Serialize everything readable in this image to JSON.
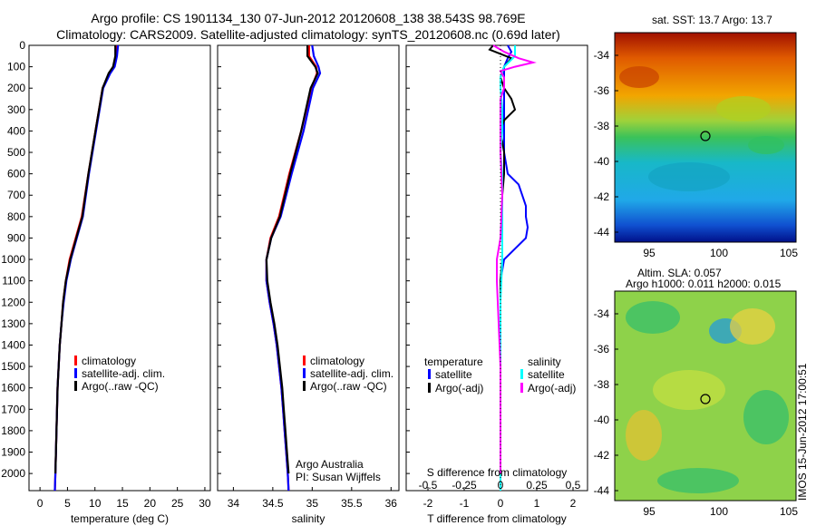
{
  "header": {
    "title_line1": "Argo profile: CS 1901134_130 07-Jun-2012 20120608_138 38.543S 98.769E",
    "title_line2": "Climatology: CARS2009. Satellite-adjusted climatology: synTS_20120608.nc (0.69d later)"
  },
  "colors": {
    "climatology": "#ff0000",
    "satellite": "#0000ff",
    "argo": "#000000",
    "sat_salinity": "#00ffff",
    "argo_salinity": "#ff00ff"
  },
  "chart_data": [
    {
      "type": "line",
      "name": "temperature",
      "xlabel": "temperature (deg C)",
      "xlim": [
        -2,
        31
      ],
      "ylim": [
        2080,
        0
      ],
      "x_ticks": [
        0,
        5,
        10,
        15,
        20,
        25,
        30
      ],
      "y_ticks": [
        0,
        100,
        200,
        300,
        400,
        500,
        600,
        700,
        800,
        900,
        1000,
        1100,
        1200,
        1300,
        1400,
        1500,
        1600,
        1700,
        1800,
        1900,
        2000
      ],
      "legend": [
        "climatology",
        "satellite-adj. clim.",
        "Argo(..raw -QC)"
      ],
      "series": [
        {
          "name": "climatology",
          "depth": [
            0,
            50,
            100,
            130,
            200,
            400,
            600,
            800,
            900,
            1000,
            1100,
            1200,
            1300,
            1400,
            1500,
            1600,
            1700,
            1800,
            1900,
            2000,
            2080
          ],
          "values": [
            13.9,
            13.8,
            13.4,
            12.6,
            11.4,
            10.1,
            8.8,
            7.6,
            6.5,
            5.4,
            4.7,
            4.2,
            3.9,
            3.6,
            3.4,
            3.2,
            3.1,
            3.0,
            2.9,
            2.8,
            2.7
          ]
        },
        {
          "name": "satellite-adj. clim.",
          "depth": [
            0,
            50,
            100,
            130,
            200,
            400,
            600,
            800,
            900,
            1000,
            1100,
            1200,
            1300,
            1400,
            1500,
            1600,
            1700,
            1800,
            1900,
            2000,
            2080
          ],
          "values": [
            14.2,
            14.0,
            13.6,
            12.8,
            11.5,
            10.2,
            8.9,
            7.8,
            6.7,
            5.6,
            4.8,
            4.3,
            3.9,
            3.6,
            3.4,
            3.2,
            3.1,
            3.0,
            2.9,
            2.8,
            2.7
          ]
        },
        {
          "name": "Argo(..raw -QC)",
          "depth": [
            0,
            50,
            100,
            130,
            200,
            400,
            600,
            800,
            900,
            1000,
            1100,
            1200,
            1300,
            1400,
            1500,
            1600,
            1700,
            1800,
            1900,
            2000
          ],
          "values": [
            13.7,
            13.7,
            13.3,
            12.5,
            11.4,
            10.1,
            8.8,
            7.7,
            6.6,
            5.5,
            4.7,
            4.2,
            3.9,
            3.6,
            3.4,
            3.2,
            3.1,
            3.0,
            2.9,
            2.8
          ]
        }
      ]
    },
    {
      "type": "line",
      "name": "salinity",
      "xlabel": "salinity",
      "xlim": [
        33.8,
        36.1
      ],
      "ylim": [
        2080,
        0
      ],
      "x_ticks": [
        34,
        34.5,
        35,
        35.5,
        36
      ],
      "legend": [
        "climatology",
        "satellite-adj. clim.",
        "Argo(..raw -QC)"
      ],
      "annotation": [
        "Argo Australia",
        "PI: Susan Wijffels"
      ],
      "series": [
        {
          "name": "climatology",
          "depth": [
            0,
            50,
            100,
            130,
            200,
            400,
            600,
            800,
            900,
            1000,
            1100,
            1200,
            1300,
            1400,
            1500,
            1600,
            1700,
            1800,
            1900,
            2000,
            2080
          ],
          "values": [
            34.96,
            34.96,
            35.05,
            35.06,
            34.99,
            34.86,
            34.71,
            34.58,
            34.47,
            34.42,
            34.42,
            34.46,
            34.51,
            34.55,
            34.58,
            34.61,
            34.63,
            34.65,
            34.67,
            34.69,
            34.7
          ]
        },
        {
          "name": "satellite-adj. clim.",
          "depth": [
            0,
            50,
            100,
            130,
            200,
            400,
            600,
            800,
            900,
            1000,
            1100,
            1200,
            1300,
            1400,
            1500,
            1600,
            1700,
            1800,
            1900,
            2000,
            2080
          ],
          "values": [
            35.0,
            35.02,
            35.08,
            35.1,
            35.01,
            34.89,
            34.74,
            34.6,
            34.48,
            34.42,
            34.42,
            34.46,
            34.51,
            34.55,
            34.58,
            34.61,
            34.63,
            34.65,
            34.67,
            34.69,
            34.7
          ]
        },
        {
          "name": "Argo(..raw -QC)",
          "depth": [
            0,
            50,
            100,
            130,
            200,
            400,
            600,
            800,
            900,
            1000,
            1100,
            1200,
            1300,
            1400,
            1500,
            1600,
            1700,
            1800,
            1900,
            2000
          ],
          "values": [
            34.94,
            34.94,
            35.04,
            35.07,
            34.98,
            34.86,
            34.72,
            34.59,
            34.48,
            34.42,
            34.43,
            34.47,
            34.52,
            34.56,
            34.59,
            34.62,
            34.64,
            34.66,
            34.68,
            34.7
          ]
        }
      ]
    },
    {
      "type": "line",
      "name": "differences",
      "xlabel": "T difference from climatology",
      "xlabel2": "S difference from climatology",
      "xlim": [
        -2.6,
        2.4
      ],
      "ylim": [
        2080,
        0
      ],
      "x_ticks": [
        -2,
        -1,
        0,
        1,
        2
      ],
      "x_ticks_top": [
        "-0.5",
        "-0.25",
        "0",
        "0.25",
        "0.5"
      ],
      "legend_temperature_title": "temperature",
      "legend_salinity_title": "salinity",
      "legend": [
        "satellite",
        "Argo(-adj)",
        "satellite",
        "Argo(-adj)"
      ],
      "series": [
        {
          "name": "satellite",
          "group": "temperature",
          "depth": [
            0,
            30,
            60,
            100,
            150,
            200,
            300,
            400,
            500,
            600,
            650,
            700,
            750,
            800,
            850,
            900,
            950,
            1000,
            1100,
            1200,
            1400,
            1600,
            1800,
            2000,
            2080
          ],
          "values": [
            0.2,
            0.3,
            0.2,
            0.1,
            0.1,
            0.1,
            0.1,
            0.1,
            0.1,
            0.2,
            0.5,
            0.6,
            0.7,
            0.7,
            0.75,
            0.7,
            0.4,
            0.1,
            0.0,
            0.0,
            0.0,
            0.0,
            0.0,
            0.0,
            0.0
          ]
        },
        {
          "name": "Argo(-adj)",
          "group": "temperature",
          "depth": [
            0,
            20,
            40,
            60,
            80,
            100,
            150,
            200,
            250,
            300,
            350,
            400,
            500,
            600,
            700,
            800,
            900,
            1000,
            1100,
            1200,
            1400,
            1600,
            1800,
            2000
          ],
          "values": [
            -0.2,
            -0.3,
            0.0,
            0.3,
            0.2,
            0.1,
            0.0,
            0.1,
            0.3,
            0.4,
            0.1,
            0.0,
            0.1,
            0.1,
            0.05,
            0.05,
            0.05,
            0.05,
            0.0,
            0.0,
            0.0,
            0.0,
            0.0,
            0.0
          ]
        },
        {
          "name": "satellite",
          "group": "salinity",
          "depth": [
            0,
            50,
            100,
            150,
            200,
            300,
            400,
            500,
            600,
            800,
            1000,
            1200,
            1400,
            1600,
            1800,
            2000,
            2080
          ],
          "values": [
            0.4,
            0.4,
            0.1,
            0.0,
            0.0,
            0.05,
            0.05,
            0.0,
            0.05,
            0.05,
            0.05,
            0.0,
            0.0,
            0.0,
            0.0,
            0.0,
            0.0
          ]
        },
        {
          "name": "Argo(-adj)",
          "group": "salinity",
          "depth": [
            0,
            30,
            60,
            80,
            100,
            120,
            150,
            200,
            250,
            300,
            400,
            500,
            700,
            900,
            1000,
            1100,
            1300,
            1500,
            1700,
            1900,
            2000
          ],
          "values": [
            -0.2,
            0.1,
            0.5,
            0.9,
            0.4,
            0.0,
            0.1,
            0.1,
            0.0,
            0.0,
            0.0,
            0.0,
            0.05,
            0.0,
            -0.1,
            -0.1,
            -0.05,
            0.0,
            0.0,
            0.0,
            0.0
          ]
        }
      ]
    }
  ],
  "maps": [
    {
      "title": "sat. SST: 13.7 Argo: 13.7",
      "y_ticks": [
        "-34",
        "-36",
        "-38",
        "-40",
        "-42",
        "-44"
      ],
      "x_ticks": [
        "95",
        "100",
        "105"
      ]
    },
    {
      "title_line1": "Altim. SLA: 0.057",
      "title_line2": "Argo h1000: 0.011 h2000: 0.015",
      "y_ticks": [
        "-34",
        "-36",
        "-38",
        "-40",
        "-42",
        "-44"
      ],
      "x_ticks": [
        "95",
        "100",
        "105"
      ]
    }
  ],
  "footer_vertical": "IMOS 15-Jun-2012 17:00:51"
}
